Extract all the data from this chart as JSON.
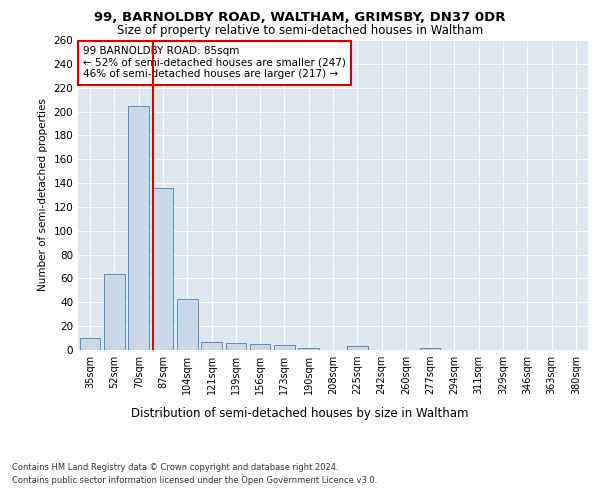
{
  "title": "99, BARNOLDBY ROAD, WALTHAM, GRIMSBY, DN37 0DR",
  "subtitle": "Size of property relative to semi-detached houses in Waltham",
  "xlabel": "Distribution of semi-detached houses by size in Waltham",
  "ylabel": "Number of semi-detached properties",
  "categories": [
    "35sqm",
    "52sqm",
    "70sqm",
    "87sqm",
    "104sqm",
    "121sqm",
    "139sqm",
    "156sqm",
    "173sqm",
    "190sqm",
    "208sqm",
    "225sqm",
    "242sqm",
    "260sqm",
    "277sqm",
    "294sqm",
    "311sqm",
    "329sqm",
    "346sqm",
    "363sqm",
    "380sqm"
  ],
  "values": [
    10,
    64,
    205,
    136,
    43,
    7,
    6,
    5,
    4,
    2,
    0,
    3,
    0,
    0,
    2,
    0,
    0,
    0,
    0,
    0,
    0
  ],
  "bar_color": "#c9d9e8",
  "bar_edge_color": "#5b8db8",
  "highlight_index": 3,
  "highlight_line_color": "#cc0000",
  "annotation_line1": "99 BARNOLDBY ROAD: 85sqm",
  "annotation_line2": "← 52% of semi-detached houses are smaller (247)",
  "annotation_line3": "46% of semi-detached houses are larger (217) →",
  "annotation_box_color": "#ffffff",
  "annotation_box_edge": "#cc0000",
  "ylim": [
    0,
    260
  ],
  "yticks": [
    0,
    20,
    40,
    60,
    80,
    100,
    120,
    140,
    160,
    180,
    200,
    220,
    240,
    260
  ],
  "background_color": "#dde8f0",
  "grid_color": "#ffffff",
  "footer_line1": "Contains HM Land Registry data © Crown copyright and database right 2024.",
  "footer_line2": "Contains public sector information licensed under the Open Government Licence v3.0."
}
